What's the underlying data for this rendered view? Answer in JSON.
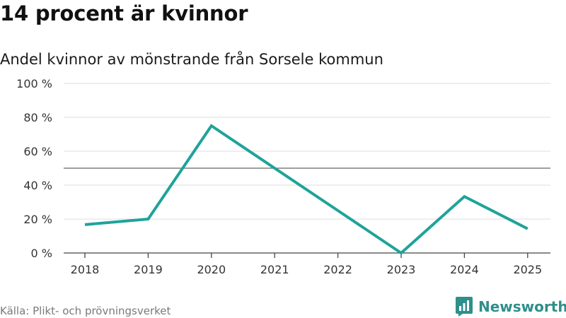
{
  "title": "14 procent är kvinnor",
  "subtitle": "Andel kvinnor av mönstrande från Sorsele kommun",
  "source": "Källa: Plikt- och prövningsverket",
  "brand": {
    "name": "Newsworthy",
    "icon": "bar-chart-speech-icon",
    "color": "#2f8f8b"
  },
  "chart_data": {
    "type": "line",
    "x": [
      "2018",
      "2019",
      "2020",
      "2021",
      "2022",
      "2023",
      "2024",
      "2025"
    ],
    "series": [
      {
        "values": [
          16.7,
          20,
          75,
          50,
          25,
          0,
          33.3,
          14.3
        ],
        "color": "#1fa39a"
      }
    ],
    "ylim": [
      0,
      100
    ],
    "yticks": [
      0,
      20,
      40,
      60,
      80,
      100
    ],
    "ytick_labels": [
      "0 %",
      "20 %",
      "40 %",
      "60 %",
      "80 %",
      "100 %"
    ],
    "reference_line": 50,
    "grid": true
  }
}
